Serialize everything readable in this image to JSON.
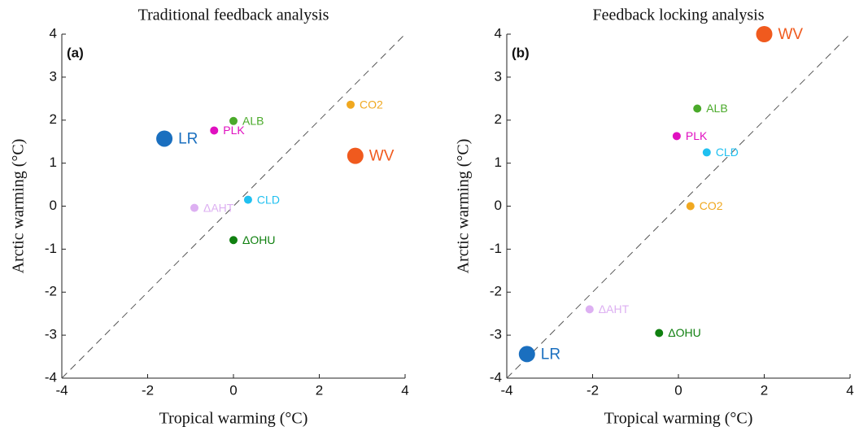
{
  "chart_data": [
    {
      "type": "scatter",
      "title": "Traditional feedback analysis",
      "panel_label": "(a)",
      "x_label": "Tropical warming (°C)",
      "y_label": "Arctic warming (°C)",
      "xlim": [
        -4,
        4
      ],
      "ylim": [
        -4,
        4
      ],
      "xticks": [
        -4,
        -2,
        0,
        2,
        4
      ],
      "yticks": [
        -4,
        -3,
        -2,
        -1,
        0,
        1,
        2,
        3,
        4
      ],
      "series": [
        {
          "name": "LR",
          "color": "#1a6fbf",
          "x": [
            -1.61
          ],
          "values": [
            1.57
          ],
          "marker": "large"
        },
        {
          "name": "PLK",
          "color": "#e010c0",
          "x": [
            -0.45
          ],
          "values": [
            1.76
          ],
          "marker": "small"
        },
        {
          "name": "ALB",
          "color": "#4aaa2a",
          "x": [
            0
          ],
          "values": [
            1.98
          ],
          "marker": "small"
        },
        {
          "name": "CO2",
          "color": "#f0a820",
          "x": [
            2.73
          ],
          "values": [
            2.36
          ],
          "marker": "small"
        },
        {
          "name": "WV",
          "color": "#f05a1e",
          "x": [
            2.84
          ],
          "values": [
            1.17
          ],
          "marker": "large"
        },
        {
          "name": "CLD",
          "color": "#20c0f0",
          "x": [
            0.34
          ],
          "values": [
            0.15
          ],
          "marker": "small"
        },
        {
          "name": "ΔAHT",
          "color": "#ddb0f2",
          "x": [
            -0.91
          ],
          "values": [
            -0.04
          ],
          "marker": "small"
        },
        {
          "name": "ΔOHU",
          "color": "#108010",
          "x": [
            0
          ],
          "values": [
            -0.79
          ],
          "marker": "small"
        }
      ]
    },
    {
      "type": "scatter",
      "title": "Feedback locking analysis",
      "panel_label": "(b)",
      "x_label": "Tropical warming (°C)",
      "y_label": "Arctic warming (°C)",
      "xlim": [
        -4,
        4
      ],
      "ylim": [
        -4,
        4
      ],
      "xticks": [
        -4,
        -2,
        0,
        2,
        4
      ],
      "yticks": [
        -4,
        -3,
        -2,
        -1,
        0,
        1,
        2,
        3,
        4
      ],
      "series": [
        {
          "name": "WV",
          "color": "#f05a1e",
          "x": [
            2.0
          ],
          "values": [
            4.0
          ],
          "marker": "large"
        },
        {
          "name": "ALB",
          "color": "#4aaa2a",
          "x": [
            0.44
          ],
          "values": [
            2.27
          ],
          "marker": "small"
        },
        {
          "name": "PLK",
          "color": "#e010c0",
          "x": [
            -0.04
          ],
          "values": [
            1.63
          ],
          "marker": "small"
        },
        {
          "name": "CLD",
          "color": "#20c0f0",
          "x": [
            0.66
          ],
          "values": [
            1.25
          ],
          "marker": "small"
        },
        {
          "name": "CO2",
          "color": "#f0a820",
          "x": [
            0.28
          ],
          "values": [
            0
          ],
          "marker": "small"
        },
        {
          "name": "ΔAHT",
          "color": "#ddb0f2",
          "x": [
            -2.07
          ],
          "values": [
            -2.4
          ],
          "marker": "small"
        },
        {
          "name": "ΔOHU",
          "color": "#108010",
          "x": [
            -0.45
          ],
          "values": [
            -2.95
          ],
          "marker": "small"
        },
        {
          "name": "LR",
          "color": "#1a6fbf",
          "x": [
            -3.53
          ],
          "values": [
            -3.44
          ],
          "marker": "large"
        }
      ]
    }
  ]
}
